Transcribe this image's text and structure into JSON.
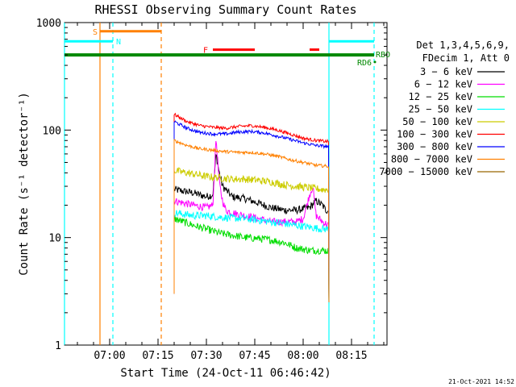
{
  "chart_data": {
    "type": "line",
    "title": "RHESSI Observing Summary Count Rates",
    "xlabel": "Start Time (24-Oct-11 06:46:42)",
    "ylabel": "Count Rate (s⁻¹ detector⁻¹)",
    "yscale": "log",
    "ylim": [
      1,
      1000
    ],
    "xlim_minutes_since_0646": [
      0,
      100
    ],
    "y_ticks": [
      {
        "label": "1",
        "value": 1
      },
      {
        "label": "10",
        "value": 10
      },
      {
        "label": "100",
        "value": 100
      },
      {
        "label": "1000",
        "value": 1000
      }
    ],
    "x_ticks": [
      {
        "label": "07:00",
        "minute": 14
      },
      {
        "label": "07:15",
        "minute": 29
      },
      {
        "label": "07:30",
        "minute": 44
      },
      {
        "label": "07:45",
        "minute": 59
      },
      {
        "label": "08:00",
        "minute": 74
      },
      {
        "label": "08:15",
        "minute": 89
      }
    ],
    "legend": {
      "header": [
        "Det 1,3,4,5,6,9,",
        "FDecim 1, Att 0"
      ],
      "position": "right",
      "entries": [
        {
          "label": "3 − 6 keV",
          "color": "#000000"
        },
        {
          "label": "6 − 12 keV",
          "color": "#ff00ff"
        },
        {
          "label": "12 − 25 keV",
          "color": "#00dd00"
        },
        {
          "label": "25 − 50 keV",
          "color": "#00ffff"
        },
        {
          "label": "50 − 100 keV",
          "color": "#cccc00"
        },
        {
          "label": "100 − 300 keV",
          "color": "#ff0000"
        },
        {
          "label": "300 − 800 keV",
          "color": "#0000ff"
        },
        {
          "label": "800 − 7000 keV",
          "color": "#ff8000"
        },
        {
          "label": "7000 − 15000 keV",
          "color": "#996600"
        }
      ]
    },
    "series": [
      {
        "name": "3 − 6 keV",
        "color": "#000000",
        "points": [
          [
            34,
            28
          ],
          [
            40,
            26
          ],
          [
            44,
            24
          ],
          [
            46,
            25
          ],
          [
            47,
            60
          ],
          [
            48,
            40
          ],
          [
            49,
            30
          ],
          [
            52,
            24
          ],
          [
            56,
            23
          ],
          [
            60,
            21
          ],
          [
            64,
            19
          ],
          [
            68,
            18
          ],
          [
            72,
            18
          ],
          [
            76,
            19
          ],
          [
            78,
            22
          ],
          [
            80,
            20
          ],
          [
            81,
            18
          ],
          [
            82,
            18
          ]
        ]
      },
      {
        "name": "6 − 12 keV",
        "color": "#ff00ff",
        "points": [
          [
            34,
            22
          ],
          [
            40,
            20
          ],
          [
            44,
            19
          ],
          [
            46,
            20
          ],
          [
            47,
            85
          ],
          [
            48,
            32
          ],
          [
            49,
            22
          ],
          [
            50,
            18
          ],
          [
            52,
            17
          ],
          [
            56,
            16
          ],
          [
            60,
            15
          ],
          [
            64,
            14
          ],
          [
            68,
            14
          ],
          [
            72,
            14
          ],
          [
            74,
            15
          ],
          [
            76,
            25
          ],
          [
            77,
            30
          ],
          [
            78,
            16
          ],
          [
            80,
            14
          ],
          [
            82,
            13
          ]
        ]
      },
      {
        "name": "12 − 25 keV",
        "color": "#00dd00",
        "points": [
          [
            34,
            15
          ],
          [
            40,
            13
          ],
          [
            44,
            12
          ],
          [
            48,
            11
          ],
          [
            52,
            10.5
          ],
          [
            56,
            10
          ],
          [
            60,
            9.8
          ],
          [
            64,
            9.5
          ],
          [
            68,
            9
          ],
          [
            72,
            8
          ],
          [
            76,
            7.6
          ],
          [
            80,
            7.6
          ],
          [
            82,
            7.5
          ]
        ]
      },
      {
        "name": "25 − 50 keV",
        "color": "#00ffff",
        "points": [
          [
            34,
            17
          ],
          [
            40,
            16
          ],
          [
            44,
            16
          ],
          [
            48,
            15.5
          ],
          [
            52,
            15.2
          ],
          [
            56,
            15
          ],
          [
            60,
            14.5
          ],
          [
            64,
            14
          ],
          [
            68,
            13.5
          ],
          [
            72,
            13
          ],
          [
            76,
            12.5
          ],
          [
            80,
            12
          ],
          [
            82,
            12
          ]
        ]
      },
      {
        "name": "50 − 100 keV",
        "color": "#cccc00",
        "points": [
          [
            34,
            42
          ],
          [
            40,
            39
          ],
          [
            44,
            37
          ],
          [
            48,
            36
          ],
          [
            52,
            35
          ],
          [
            56,
            35
          ],
          [
            60,
            34
          ],
          [
            64,
            33
          ],
          [
            68,
            31
          ],
          [
            72,
            30
          ],
          [
            76,
            29
          ],
          [
            80,
            28
          ],
          [
            82,
            28
          ]
        ]
      },
      {
        "name": "100 − 300 keV",
        "color": "#ff0000",
        "points": [
          [
            34,
            140
          ],
          [
            38,
            120
          ],
          [
            42,
            110
          ],
          [
            46,
            106
          ],
          [
            50,
            104
          ],
          [
            54,
            108
          ],
          [
            58,
            110
          ],
          [
            62,
            106
          ],
          [
            66,
            100
          ],
          [
            70,
            92
          ],
          [
            74,
            84
          ],
          [
            78,
            80
          ],
          [
            82,
            78
          ]
        ]
      },
      {
        "name": "300 − 800 keV",
        "color": "#0000ff",
        "points": [
          [
            34,
            120
          ],
          [
            38,
            104
          ],
          [
            42,
            95
          ],
          [
            46,
            92
          ],
          [
            50,
            92
          ],
          [
            54,
            96
          ],
          [
            58,
            97
          ],
          [
            62,
            94
          ],
          [
            66,
            88
          ],
          [
            70,
            82
          ],
          [
            74,
            76
          ],
          [
            78,
            72
          ],
          [
            82,
            70
          ]
        ]
      },
      {
        "name": "800 − 7000 keV",
        "color": "#ff8000",
        "points": [
          [
            34,
            80
          ],
          [
            38,
            72
          ],
          [
            42,
            67
          ],
          [
            46,
            65
          ],
          [
            50,
            63
          ],
          [
            54,
            62
          ],
          [
            58,
            62
          ],
          [
            62,
            60
          ],
          [
            66,
            57
          ],
          [
            70,
            53
          ],
          [
            74,
            50
          ],
          [
            78,
            47
          ],
          [
            82,
            46
          ]
        ]
      }
    ],
    "flags": {
      "S": {
        "label": "S",
        "color": "#ff8000",
        "start_minute": 11,
        "end_minute": 30,
        "level": 830
      },
      "N": {
        "label": "N",
        "color": "#00ffff",
        "segments": [
          [
            0,
            15
          ],
          [
            82,
            96
          ]
        ],
        "level": 670
      },
      "F": {
        "label": "F",
        "color": "#ff0000",
        "segments": [
          [
            46,
            59
          ],
          [
            76,
            79
          ]
        ],
        "level": 560
      },
      "RBO": {
        "label": "RBO",
        "color": "#008800",
        "start_minute": 0,
        "end_minute": 96,
        "level": 500
      },
      "RD6": {
        "label": "RD6",
        "color": "#008800",
        "level": 430
      }
    },
    "vertical_markers": [
      {
        "color": "#00ffff",
        "minute": 0,
        "style": "solid"
      },
      {
        "color": "#ff8000",
        "minute": 11,
        "style": "solid"
      },
      {
        "color": "#00ffff",
        "minute": 15,
        "style": "dashed"
      },
      {
        "color": "#ff8000",
        "minute": 30,
        "style": "dashed"
      },
      {
        "color": "#00ffff",
        "minute": 82,
        "style": "solid"
      },
      {
        "color": "#00ffff",
        "minute": 96,
        "style": "dashed"
      }
    ]
  },
  "footer": {
    "timestamp": "21-Oct-2021 14:52"
  }
}
